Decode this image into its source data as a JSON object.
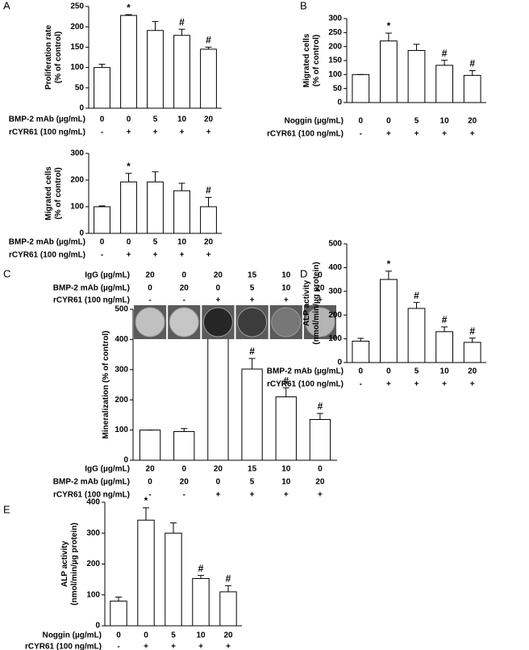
{
  "chart_data": [
    {
      "type": "bar",
      "panel": "A",
      "ylabel": [
        "Proliferation rate",
        "(% of control)"
      ],
      "values": [
        100,
        228,
        191,
        179,
        145
      ],
      "errors": [
        8,
        2,
        22,
        15,
        5
      ],
      "annotations": [
        null,
        "*",
        null,
        "#",
        "#"
      ],
      "ylim": [
        0,
        250
      ],
      "yticks": [
        0,
        50,
        100,
        150,
        200,
        250
      ],
      "color": "#ffffff",
      "rows": [
        {
          "label": "BMP-2 mAb (µg/mL)",
          "values": [
            "0",
            "0",
            "5",
            "10",
            "20"
          ]
        },
        {
          "label": "rCYR61 (100 ng/mL)",
          "values": [
            "-",
            "+",
            "+",
            "+",
            "+"
          ]
        }
      ]
    },
    {
      "type": "bar",
      "panel": "B",
      "ylabel": [
        "Migrated cells",
        "(% of control)"
      ],
      "values": [
        100,
        220,
        186,
        133,
        97
      ],
      "errors": [
        0,
        28,
        22,
        18,
        17
      ],
      "annotations": [
        null,
        "*",
        null,
        "#",
        "#"
      ],
      "ylim": [
        0,
        300
      ],
      "yticks": [
        0,
        50,
        100,
        150,
        200,
        250,
        300
      ],
      "color": "#ffffff",
      "rows": [
        {
          "label": "Noggin (µg/mL)",
          "values": [
            "0",
            "0",
            "5",
            "10",
            "20"
          ]
        },
        {
          "label": "rCYR61 (100 ng/mL)",
          "values": [
            "-",
            "+",
            "+",
            "+",
            "+"
          ]
        }
      ]
    },
    {
      "type": "bar",
      "ylabel": [
        "Migrated cells",
        "(% of control)"
      ],
      "values": [
        100,
        193,
        193,
        160,
        100
      ],
      "errors": [
        3,
        32,
        38,
        28,
        35
      ],
      "annotations": [
        null,
        "*",
        null,
        null,
        "#"
      ],
      "ylim": [
        0,
        300
      ],
      "yticks": [
        0,
        100,
        200,
        300
      ],
      "color": "#ffffff",
      "rows": [
        {
          "label": "BMP-2 mAb (µg/mL)",
          "values": [
            "0",
            "0",
            "5",
            "10",
            "20"
          ]
        },
        {
          "label": "rCYR61 (100 ng/mL)",
          "values": [
            "-",
            "+",
            "+",
            "+",
            "+"
          ]
        }
      ]
    },
    {
      "type": "bar",
      "panel": "C",
      "ylabel": [
        "Mineralization (% of control)"
      ],
      "values": [
        100,
        95,
        418,
        302,
        210,
        135
      ],
      "errors": [
        0,
        10,
        50,
        35,
        30,
        20
      ],
      "annotations": [
        null,
        null,
        "*",
        "#",
        "#",
        "#"
      ],
      "ylim": [
        0,
        500
      ],
      "yticks": [
        0,
        100,
        200,
        300,
        400,
        500
      ],
      "color": "#ffffff",
      "top_rows": [
        {
          "label": "IgG (µg/mL)",
          "values": [
            "20",
            "0",
            "20",
            "15",
            "10",
            "0"
          ]
        },
        {
          "label": "BMP-2 mAb (µg/mL)",
          "values": [
            "0",
            "20",
            "0",
            "5",
            "10",
            "20"
          ]
        },
        {
          "label": "rCYR61 (100 ng/mL)",
          "values": [
            "-",
            "-",
            "+",
            "+",
            "+",
            "+"
          ]
        }
      ],
      "rows": [
        {
          "label": "IgG (µg/mL)",
          "values": [
            "20",
            "0",
            "20",
            "15",
            "10",
            "0"
          ]
        },
        {
          "label": "BMP-2 mAb (µg/mL)",
          "values": [
            "0",
            "20",
            "0",
            "5",
            "10",
            "20"
          ]
        },
        {
          "label": "rCYR61 (100 ng/mL)",
          "values": [
            "-",
            "-",
            "+",
            "+",
            "+",
            "+"
          ]
        }
      ]
    },
    {
      "type": "bar",
      "panel": "D",
      "ylabel": [
        "ALP activity",
        "(nmol/min/µg protein)"
      ],
      "values": [
        90,
        350,
        228,
        130,
        85
      ],
      "errors": [
        12,
        35,
        25,
        20,
        18
      ],
      "annotations": [
        null,
        "*",
        "#",
        "#",
        "#"
      ],
      "ylim": [
        0,
        500
      ],
      "yticks": [
        0,
        100,
        200,
        300,
        400,
        500
      ],
      "color": "#ffffff",
      "rows": [
        {
          "label": "BMP-2 mAb (µg/mL)",
          "values": [
            "0",
            "0",
            "5",
            "10",
            "20"
          ]
        },
        {
          "label": "rCYR61 (100 ng/mL)",
          "values": [
            "-",
            "+",
            "+",
            "+",
            "+"
          ]
        }
      ]
    },
    {
      "type": "bar",
      "panel": "E",
      "ylabel": [
        "ALP activity",
        "(nmol/min/µg protein)"
      ],
      "values": [
        80,
        342,
        300,
        153,
        110
      ],
      "errors": [
        13,
        40,
        33,
        10,
        20
      ],
      "annotations": [
        null,
        "*",
        null,
        "#",
        "#"
      ],
      "ylim": [
        0,
        400
      ],
      "yticks": [
        0,
        100,
        200,
        300,
        400
      ],
      "color": "#ffffff",
      "rows": [
        {
          "label": "Noggin (µg/mL)",
          "values": [
            "0",
            "0",
            "5",
            "10",
            "20"
          ]
        },
        {
          "label": "rCYR61 (100 ng/mL)",
          "values": [
            "-",
            "+",
            "+",
            "+",
            "+"
          ]
        }
      ]
    }
  ]
}
